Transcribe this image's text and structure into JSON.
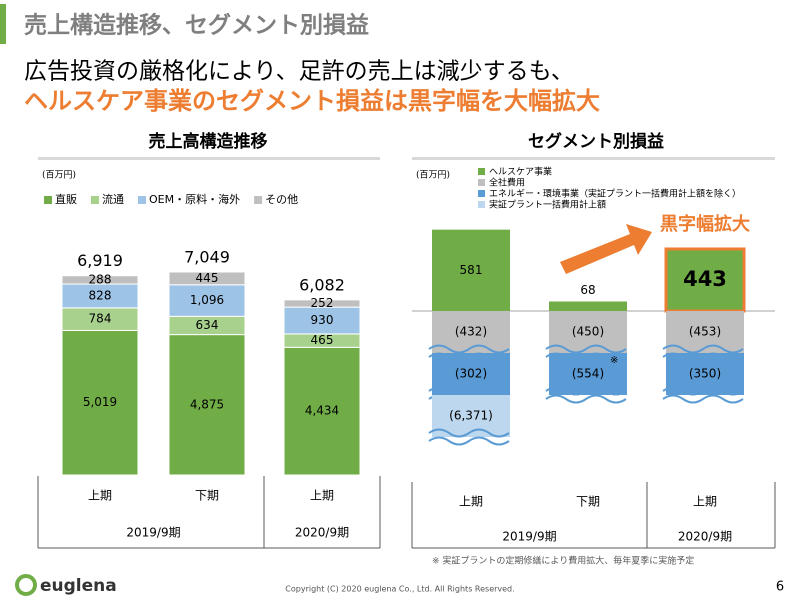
{
  "header": {
    "title": "売上構造推移、セグメント別損益",
    "headline": "広告投資の厳格化により、足許の売上は減少するも、",
    "highlight": "ヘルスケア事業のセグメント損益は黒字幅を大幅拡大"
  },
  "chart_data": [
    {
      "type": "stacked_bar",
      "title": "売上高構造推移",
      "unit": "(百万円)",
      "groups": [
        {
          "label": "2019/9期",
          "categories": [
            "上期",
            "下期"
          ]
        },
        {
          "label": "2020/9期",
          "categories": [
            "上期"
          ]
        }
      ],
      "series": [
        {
          "name": "直販",
          "color": "#70ad47",
          "values": [
            5019,
            4875,
            4434
          ],
          "value_labels": [
            "5,019",
            "4,875",
            "4,434"
          ]
        },
        {
          "name": "流通",
          "color": "#a9d18e",
          "values": [
            784,
            634,
            465
          ],
          "value_labels": [
            "784",
            "634",
            "465"
          ]
        },
        {
          "name": "OEM・原料・海外",
          "color": "#9dc3e6",
          "values": [
            828,
            1096,
            930
          ],
          "value_labels": [
            "828",
            "1,096",
            "930"
          ]
        },
        {
          "name": "その他",
          "color": "#bfbfbf",
          "values": [
            288,
            445,
            252
          ],
          "value_labels": [
            "288",
            "445",
            "252"
          ]
        }
      ],
      "totals": {
        "values": [
          6919,
          7049,
          6082
        ],
        "value_labels": [
          "6,919",
          "7,049",
          "6,082"
        ]
      }
    },
    {
      "type": "segment_bar",
      "title": "セグメント別損益",
      "unit": "(百万円)",
      "groups": [
        {
          "label": "2019/9期",
          "categories": [
            "上期",
            "下期"
          ]
        },
        {
          "label": "2020/9期",
          "categories": [
            "上期"
          ]
        }
      ],
      "series": [
        {
          "name": "ヘルスケア事業",
          "color": "#70ad47",
          "values": [
            581,
            68,
            443
          ],
          "value_labels": [
            "581",
            "68",
            "443"
          ]
        },
        {
          "name": "全社費用",
          "color": "#bfbfbf",
          "values": [
            -432,
            -450,
            -453
          ],
          "value_labels": [
            "(432)",
            "(450)",
            "(453)"
          ]
        },
        {
          "name": "エネルギー・環境事業（実証プラント一括費用計上額を除く）",
          "color": "#5b9bd5",
          "values": [
            -302,
            -554,
            -350
          ],
          "value_labels": [
            "(302)",
            "(554)",
            "(350)"
          ]
        },
        {
          "name": "実証プラント一括費用計上額",
          "color": "#bdd7ee",
          "values": [
            -6371,
            null,
            null
          ],
          "value_labels": [
            "(6,371)",
            null,
            null
          ]
        }
      ],
      "annotation": "黒字幅拡大",
      "note_mark": "※",
      "footnote": "※ 実証プラントの定期修繕により費用拡大、毎年夏季に実施予定"
    }
  ],
  "footer": {
    "logo": "euglena",
    "copyright": "Copyright (C) 2020 euglena Co., Ltd. All Rights Reserved.",
    "page": "6"
  }
}
